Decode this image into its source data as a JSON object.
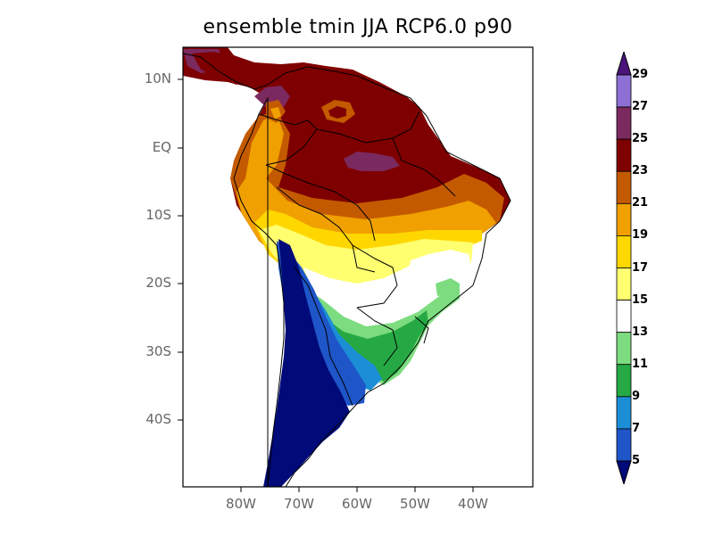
{
  "title": "ensemble tmin JJA RCP6.0 p90",
  "axes": {
    "lat_labels": [
      "10N",
      "EQ",
      "10S",
      "20S",
      "30S",
      "40S"
    ],
    "lon_labels": [
      "80W",
      "70W",
      "60W",
      "50W",
      "40W"
    ]
  },
  "colorbar": {
    "labels": [
      "29",
      "27",
      "25",
      "23",
      "21",
      "19",
      "17",
      "15",
      "13",
      "11",
      "9",
      "7",
      "5"
    ],
    "colors": [
      "#4a157a",
      "#8e6fd6",
      "#7b2a5f",
      "#7f0000",
      "#c45a00",
      "#f0a000",
      "#ffd700",
      "#ffff70",
      "#ffffff",
      "#7ddc80",
      "#26a944",
      "#1c8ed6",
      "#1e55c8",
      "#000a78"
    ]
  },
  "chart_data": {
    "type": "heatmap",
    "title": "ensemble tmin JJA RCP6.0 p90",
    "lon_range": [
      -90,
      -30
    ],
    "lat_range": [
      -50,
      13
    ],
    "lon_ticks": [
      "80W",
      "70W",
      "60W",
      "50W",
      "40W"
    ],
    "lat_ticks": [
      "10N",
      "EQ",
      "10S",
      "20S",
      "30S",
      "40S"
    ],
    "contour_levels": [
      5,
      7,
      9,
      11,
      13,
      15,
      17,
      19,
      21,
      23,
      25,
      27,
      29
    ],
    "colorbar_position": "right"
  }
}
